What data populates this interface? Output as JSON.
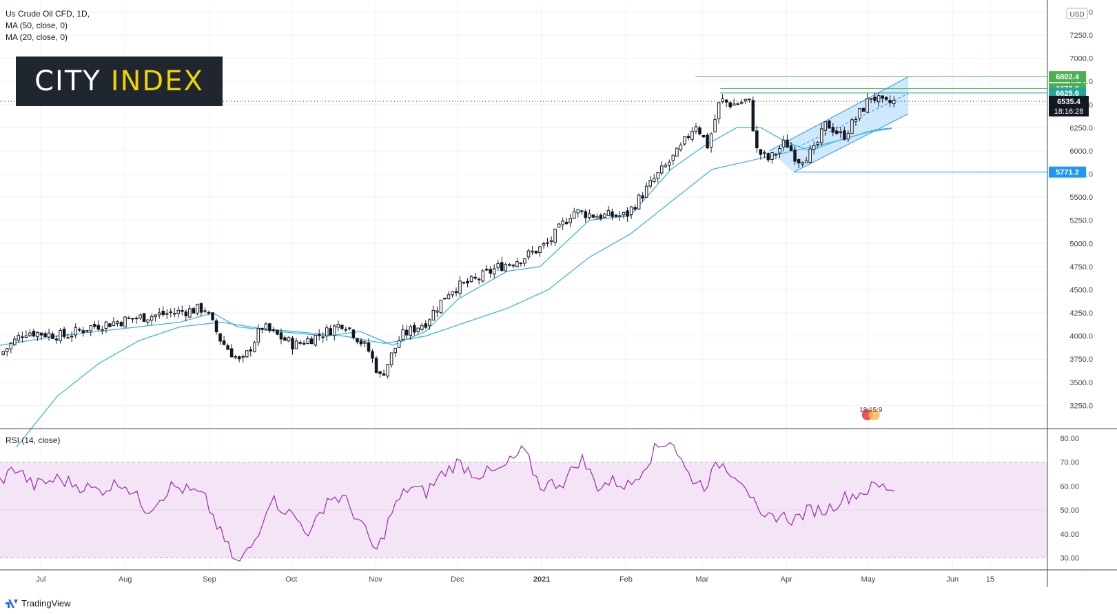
{
  "legend": {
    "line1": "Us Crude Oil CFD, 1D,",
    "line2": "MA (50, close, 0)",
    "line3": "MA (20, close, 0)"
  },
  "logo": {
    "part1": "CITY",
    "part2": "INDEX"
  },
  "rsi_label": "RSI (14, close)",
  "footer": {
    "brand": "TradingView"
  },
  "currency": "USD",
  "colors": {
    "candle": "#131722",
    "ma": "#3fb4e6",
    "channel": "#2196f3",
    "channel_fill": "#bbdefb",
    "green": "#4caf50",
    "rsi": "#9c27b0",
    "rsi_band": "#f3e5f5",
    "grid": "#eef0f3"
  },
  "chart_data": [
    {
      "type": "candlestick",
      "title": "Us Crude Oil CFD, 1D,",
      "ylim": [
        3000,
        7600
      ],
      "y_ticks": [
        "7500.0",
        "7250.0",
        "7000.0",
        "6750.0",
        "6500.0",
        "6250.0",
        "6000.0",
        "5750.0",
        "5500.0",
        "5250.0",
        "5000.0",
        "4750.0",
        "4500.0",
        "4250.0",
        "4000.0",
        "3750.0",
        "3500.0",
        "3250.0"
      ],
      "x_ticks": [
        {
          "label": "Jul",
          "t": 0.3
        },
        {
          "label": "Aug",
          "t": 1.33
        },
        {
          "label": "Sep",
          "t": 2.36
        },
        {
          "label": "Oct",
          "t": 3.36
        },
        {
          "label": "Nov",
          "t": 4.39
        },
        {
          "label": "Dec",
          "t": 5.39
        },
        {
          "label": "2021",
          "t": 6.42
        },
        {
          "label": "Feb",
          "t": 7.45
        },
        {
          "label": "Mar",
          "t": 8.38
        },
        {
          "label": "Apr",
          "t": 9.41
        },
        {
          "label": "May",
          "t": 10.41
        },
        {
          "label": "Jun",
          "t": 11.44
        },
        {
          "label": "15",
          "t": 11.9
        }
      ],
      "x_range_months": [
        -0.2,
        12.6
      ],
      "close_anchors": [
        {
          "t": -0.2,
          "v": 3800
        },
        {
          "t": 0.1,
          "v": 4050
        },
        {
          "t": 0.6,
          "v": 4000
        },
        {
          "t": 0.9,
          "v": 4100
        },
        {
          "t": 1.2,
          "v": 4150
        },
        {
          "t": 1.5,
          "v": 4200
        },
        {
          "t": 1.9,
          "v": 4250
        },
        {
          "t": 2.3,
          "v": 4300
        },
        {
          "t": 2.5,
          "v": 3950
        },
        {
          "t": 2.75,
          "v": 3700
        },
        {
          "t": 3.0,
          "v": 4100
        },
        {
          "t": 3.4,
          "v": 3900
        },
        {
          "t": 3.8,
          "v": 4050
        },
        {
          "t": 4.0,
          "v": 4150
        },
        {
          "t": 4.3,
          "v": 3850
        },
        {
          "t": 4.45,
          "v": 3550
        },
        {
          "t": 4.7,
          "v": 4000
        },
        {
          "t": 5.0,
          "v": 4150
        },
        {
          "t": 5.3,
          "v": 4500
        },
        {
          "t": 5.6,
          "v": 4600
        },
        {
          "t": 5.9,
          "v": 4750
        },
        {
          "t": 6.2,
          "v": 4850
        },
        {
          "t": 6.5,
          "v": 5000
        },
        {
          "t": 6.8,
          "v": 5350
        },
        {
          "t": 7.1,
          "v": 5300
        },
        {
          "t": 7.45,
          "v": 5300
        },
        {
          "t": 7.8,
          "v": 5700
        },
        {
          "t": 8.1,
          "v": 6000
        },
        {
          "t": 8.3,
          "v": 6300
        },
        {
          "t": 8.45,
          "v": 6050
        },
        {
          "t": 8.6,
          "v": 6550
        },
        {
          "t": 8.75,
          "v": 6500
        },
        {
          "t": 8.95,
          "v": 6550
        },
        {
          "t": 9.05,
          "v": 6000
        },
        {
          "t": 9.2,
          "v": 5900
        },
        {
          "t": 9.4,
          "v": 6100
        },
        {
          "t": 9.55,
          "v": 5900
        },
        {
          "t": 9.75,
          "v": 6000
        },
        {
          "t": 9.9,
          "v": 6300
        },
        {
          "t": 10.1,
          "v": 6150
        },
        {
          "t": 10.3,
          "v": 6400
        },
        {
          "t": 10.45,
          "v": 6600
        },
        {
          "t": 10.6,
          "v": 6500
        },
        {
          "t": 10.75,
          "v": 6535.4
        }
      ],
      "ma50_anchors": [
        {
          "t": 0.0,
          "v": 2800
        },
        {
          "t": 0.5,
          "v": 3350
        },
        {
          "t": 1.0,
          "v": 3700
        },
        {
          "t": 1.5,
          "v": 3950
        },
        {
          "t": 2.0,
          "v": 4100
        },
        {
          "t": 2.5,
          "v": 4150
        },
        {
          "t": 3.0,
          "v": 4080
        },
        {
          "t": 3.5,
          "v": 4040
        },
        {
          "t": 4.0,
          "v": 4000
        },
        {
          "t": 4.5,
          "v": 3920
        },
        {
          "t": 5.0,
          "v": 4000
        },
        {
          "t": 5.5,
          "v": 4150
        },
        {
          "t": 6.0,
          "v": 4300
        },
        {
          "t": 6.5,
          "v": 4500
        },
        {
          "t": 7.0,
          "v": 4850
        },
        {
          "t": 7.5,
          "v": 5100
        },
        {
          "t": 8.0,
          "v": 5450
        },
        {
          "t": 8.5,
          "v": 5800
        },
        {
          "t": 9.0,
          "v": 5900
        },
        {
          "t": 9.5,
          "v": 6000
        },
        {
          "t": 10.0,
          "v": 6100
        },
        {
          "t": 10.5,
          "v": 6230
        },
        {
          "t": 10.75,
          "v": 6250
        }
      ],
      "ma20_anchors": [
        {
          "t": -0.2,
          "v": 3900
        },
        {
          "t": 0.5,
          "v": 4000
        },
        {
          "t": 1.0,
          "v": 4050
        },
        {
          "t": 1.5,
          "v": 4100
        },
        {
          "t": 2.0,
          "v": 4150
        },
        {
          "t": 2.4,
          "v": 4250
        },
        {
          "t": 2.7,
          "v": 4100
        },
        {
          "t": 3.2,
          "v": 4050
        },
        {
          "t": 3.8,
          "v": 4000
        },
        {
          "t": 4.2,
          "v": 4050
        },
        {
          "t": 4.6,
          "v": 3900
        },
        {
          "t": 5.0,
          "v": 4050
        },
        {
          "t": 5.4,
          "v": 4400
        },
        {
          "t": 6.0,
          "v": 4700
        },
        {
          "t": 6.4,
          "v": 4750
        },
        {
          "t": 7.0,
          "v": 5250
        },
        {
          "t": 7.5,
          "v": 5300
        },
        {
          "t": 8.0,
          "v": 5800
        },
        {
          "t": 8.4,
          "v": 6050
        },
        {
          "t": 8.8,
          "v": 6250
        },
        {
          "t": 9.1,
          "v": 6250
        },
        {
          "t": 9.4,
          "v": 6100
        },
        {
          "t": 9.7,
          "v": 6000
        },
        {
          "t": 10.0,
          "v": 6100
        },
        {
          "t": 10.4,
          "v": 6200
        },
        {
          "t": 10.75,
          "v": 6250
        }
      ],
      "channel": {
        "upper": [
          {
            "t": 9.2,
            "v": 6000
          },
          {
            "t": 10.9,
            "v": 6800
          }
        ],
        "lower": [
          {
            "t": 9.5,
            "v": 5770
          },
          {
            "t": 10.9,
            "v": 6400
          }
        ],
        "mid": [
          {
            "t": 9.5,
            "v": 6020
          },
          {
            "t": 10.9,
            "v": 6620
          }
        ]
      },
      "horizontal_levels": [
        {
          "value": 6802.4,
          "label": "6802.4",
          "color": "#4caf50",
          "from_t": 8.3
        },
        {
          "value": 6672.8,
          "label": "6672.8",
          "color": "#4caf50",
          "from_t": 8.6
        },
        {
          "value": 6625.6,
          "label": "6625.6",
          "color": "#26a69a",
          "from_t": 8.6
        },
        {
          "value": 5771.2,
          "label": "5771.2",
          "color": "#2196f3",
          "from_t": 9.5
        }
      ],
      "last_price": {
        "value": 6535.4,
        "label": "6535.4",
        "countdown": "18:16:28"
      },
      "event_marker": "18:15:9"
    },
    {
      "type": "line",
      "title": "RSI (14, close)",
      "ylim": [
        25,
        84
      ],
      "y_ticks": [
        "80.00",
        "70.00",
        "60.00",
        "50.00",
        "40.00",
        "30.00"
      ],
      "band": [
        30,
        70
      ],
      "series": [
        {
          "name": "RSI",
          "anchors": [
            {
              "t": -0.2,
              "v": 62
            },
            {
              "t": 0.0,
              "v": 68
            },
            {
              "t": 0.2,
              "v": 60
            },
            {
              "t": 0.5,
              "v": 63
            },
            {
              "t": 0.8,
              "v": 60
            },
            {
              "t": 1.0,
              "v": 58
            },
            {
              "t": 1.3,
              "v": 62
            },
            {
              "t": 1.6,
              "v": 50
            },
            {
              "t": 1.9,
              "v": 60
            },
            {
              "t": 2.2,
              "v": 57
            },
            {
              "t": 2.3,
              "v": 55
            },
            {
              "t": 2.5,
              "v": 40
            },
            {
              "t": 2.7,
              "v": 27
            },
            {
              "t": 2.9,
              "v": 36
            },
            {
              "t": 3.1,
              "v": 55
            },
            {
              "t": 3.4,
              "v": 47
            },
            {
              "t": 3.6,
              "v": 40
            },
            {
              "t": 3.8,
              "v": 55
            },
            {
              "t": 4.0,
              "v": 55
            },
            {
              "t": 4.2,
              "v": 45
            },
            {
              "t": 4.4,
              "v": 32
            },
            {
              "t": 4.6,
              "v": 50
            },
            {
              "t": 4.8,
              "v": 60
            },
            {
              "t": 5.0,
              "v": 57
            },
            {
              "t": 5.2,
              "v": 65
            },
            {
              "t": 5.4,
              "v": 70
            },
            {
              "t": 5.6,
              "v": 65
            },
            {
              "t": 5.9,
              "v": 66
            },
            {
              "t": 6.2,
              "v": 75
            },
            {
              "t": 6.4,
              "v": 60
            },
            {
              "t": 6.7,
              "v": 62
            },
            {
              "t": 6.9,
              "v": 72
            },
            {
              "t": 7.1,
              "v": 60
            },
            {
              "t": 7.3,
              "v": 62
            },
            {
              "t": 7.5,
              "v": 60
            },
            {
              "t": 7.8,
              "v": 75
            },
            {
              "t": 8.0,
              "v": 80
            },
            {
              "t": 8.2,
              "v": 65
            },
            {
              "t": 8.4,
              "v": 60
            },
            {
              "t": 8.6,
              "v": 70
            },
            {
              "t": 8.9,
              "v": 62
            },
            {
              "t": 9.1,
              "v": 45
            },
            {
              "t": 9.3,
              "v": 48
            },
            {
              "t": 9.5,
              "v": 46
            },
            {
              "t": 9.7,
              "v": 50
            },
            {
              "t": 9.9,
              "v": 50
            },
            {
              "t": 10.1,
              "v": 55
            },
            {
              "t": 10.3,
              "v": 57
            },
            {
              "t": 10.5,
              "v": 60
            },
            {
              "t": 10.75,
              "v": 59
            }
          ]
        }
      ]
    }
  ]
}
